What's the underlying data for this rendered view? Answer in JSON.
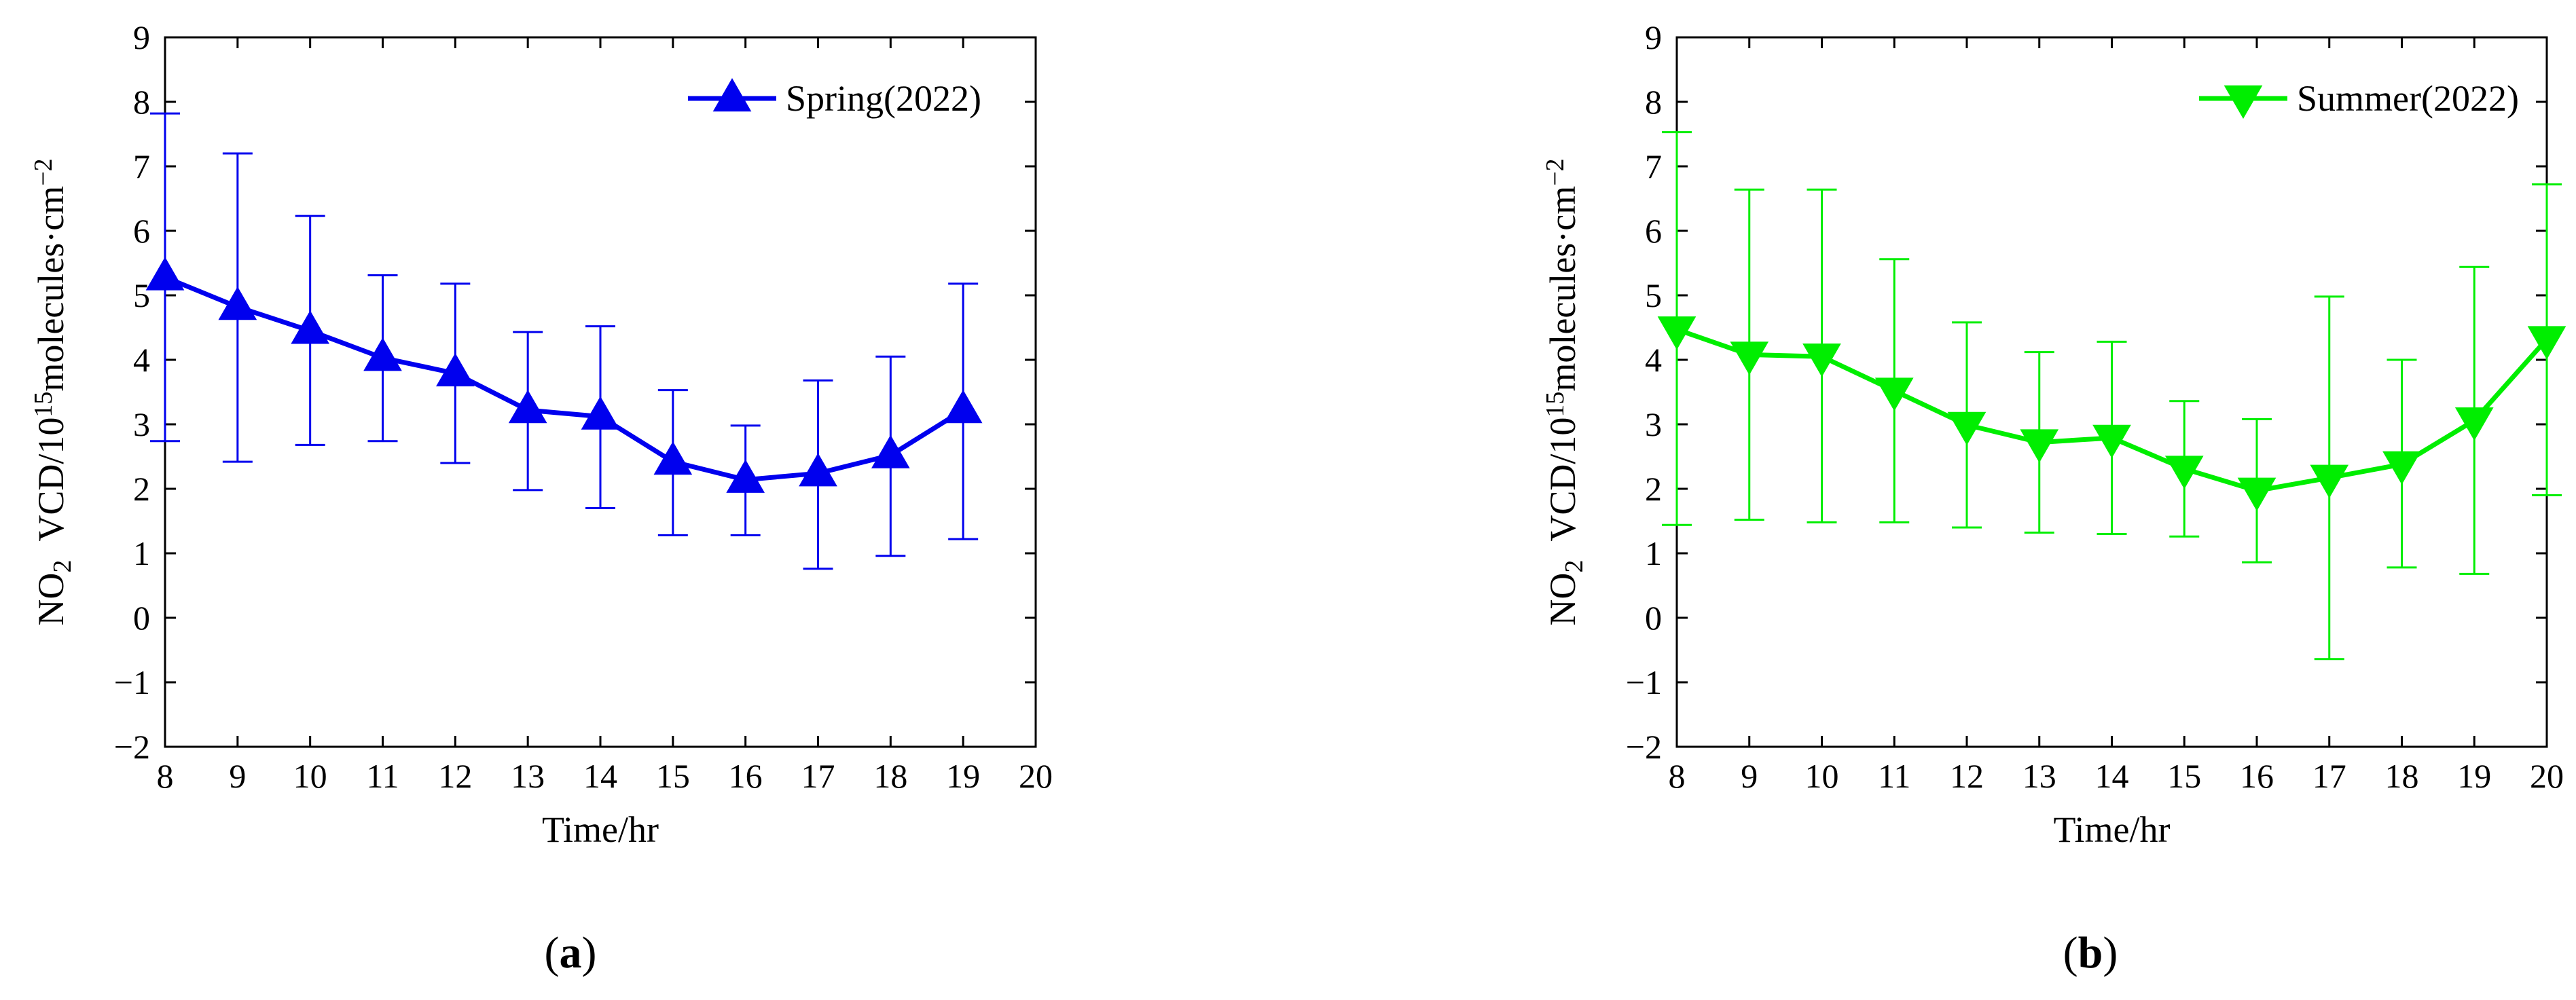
{
  "chart_data": [
    {
      "type": "line",
      "panel_label": "a",
      "title": "",
      "xlabel": "Time/hr",
      "ylabel": {
        "prefix": "NO",
        "prefix_sub": "2",
        "main": "VCD/10",
        "main_sup": "15",
        "tail": "molecules·cm",
        "tail_sup": "−2"
      },
      "xlim": [
        8,
        20
      ],
      "ylim": [
        -2,
        9
      ],
      "xticks": [
        8,
        9,
        10,
        11,
        12,
        13,
        14,
        15,
        16,
        17,
        18,
        19,
        20
      ],
      "yticks": [
        -2,
        -1,
        0,
        1,
        2,
        3,
        4,
        5,
        6,
        7,
        8,
        9
      ],
      "ytick_labels": [
        "−2",
        "−1",
        "0",
        "1",
        "2",
        "3",
        "4",
        "5",
        "6",
        "7",
        "8",
        "9"
      ],
      "legend_position": "top-right",
      "grid": false,
      "series": [
        {
          "name": "Spring(2022)",
          "color": "#0000ee",
          "marker": "triangle-up",
          "x": [
            8,
            9,
            10,
            11,
            12,
            13,
            14,
            15,
            16,
            17,
            18,
            19
          ],
          "values": [
            5.28,
            4.82,
            4.45,
            4.03,
            3.79,
            3.22,
            3.12,
            2.42,
            2.14,
            2.24,
            2.52,
            3.22
          ],
          "err_low": [
            2.74,
            2.42,
            2.68,
            2.74,
            2.4,
            1.98,
            1.7,
            1.28,
            1.28,
            0.76,
            0.96,
            1.22
          ],
          "err_high": [
            7.82,
            7.2,
            6.23,
            5.31,
            5.18,
            4.43,
            4.52,
            3.53,
            2.98,
            3.68,
            4.05,
            5.18
          ]
        }
      ]
    },
    {
      "type": "line",
      "panel_label": "b",
      "title": "",
      "xlabel": "Time/hr",
      "ylabel": {
        "prefix": "NO",
        "prefix_sub": "2",
        "main": "VCD/10",
        "main_sup": "15",
        "tail": "molecules·cm",
        "tail_sup": "−2"
      },
      "xlim": [
        8,
        20
      ],
      "ylim": [
        -2,
        9
      ],
      "xticks": [
        8,
        9,
        10,
        11,
        12,
        13,
        14,
        15,
        16,
        17,
        18,
        19,
        20
      ],
      "yticks": [
        -2,
        -1,
        0,
        1,
        2,
        3,
        4,
        5,
        6,
        7,
        8,
        9
      ],
      "ytick_labels": [
        "−2",
        "−1",
        "0",
        "1",
        "2",
        "3",
        "4",
        "5",
        "6",
        "7",
        "8",
        "9"
      ],
      "legend_position": "top-right",
      "grid": false,
      "series": [
        {
          "name": "Summer(2022)",
          "color": "#00ee00",
          "marker": "triangle-down",
          "x": [
            8,
            9,
            10,
            11,
            12,
            13,
            14,
            15,
            16,
            17,
            18,
            19,
            20
          ],
          "values": [
            4.47,
            4.08,
            4.05,
            3.52,
            2.99,
            2.72,
            2.79,
            2.31,
            1.97,
            2.17,
            2.38,
            3.06,
            4.32
          ],
          "err_low": [
            1.44,
            1.52,
            1.48,
            1.48,
            1.4,
            1.32,
            1.3,
            1.26,
            0.86,
            -0.64,
            0.78,
            0.68,
            1.9
          ],
          "err_high": [
            7.53,
            6.64,
            6.64,
            5.56,
            4.58,
            4.12,
            4.28,
            3.36,
            3.08,
            4.98,
            4.0,
            5.44,
            6.72
          ]
        }
      ]
    }
  ]
}
